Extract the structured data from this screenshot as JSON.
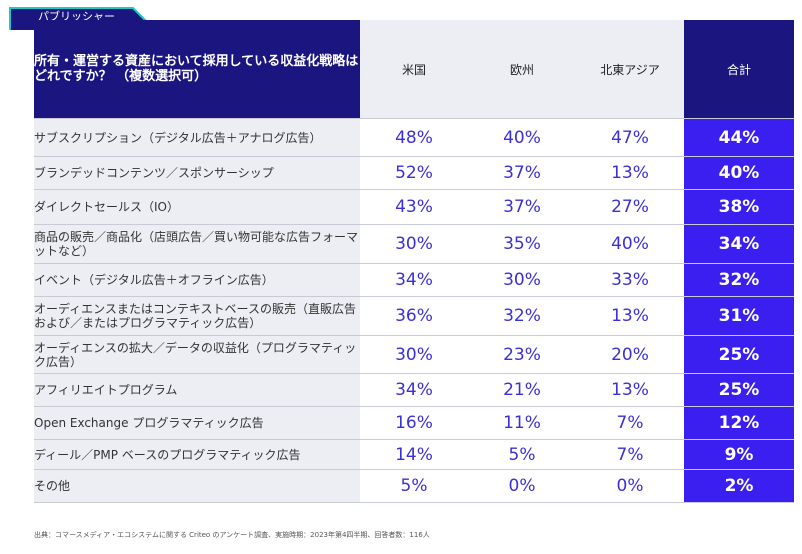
{
  "tag": {
    "label": "パブリッシャー"
  },
  "header": {
    "question": "所有・運営する資産において採用している収益化戦略はどれですか？ （複数選択可）",
    "regions": [
      "米国",
      "欧州",
      "北東アジア",
      "合計"
    ]
  },
  "rows": [
    {
      "label": "サブスクリプション（デジタル広告＋アナログ広告）",
      "values": [
        "48%",
        "40%",
        "47%",
        "44%"
      ]
    },
    {
      "label": "ブランデッドコンテンツ／スポンサーシップ",
      "values": [
        "52%",
        "37%",
        "13%",
        "40%"
      ]
    },
    {
      "label": "ダイレクトセールス（IO）",
      "values": [
        "43%",
        "37%",
        "27%",
        "38%"
      ]
    },
    {
      "label": "商品の販売／商品化（店頭広告／買い物可能な広告フォーマットなど）",
      "values": [
        "30%",
        "35%",
        "40%",
        "34%"
      ]
    },
    {
      "label": "イベント（デジタル広告＋オフライン広告）",
      "values": [
        "34%",
        "30%",
        "33%",
        "32%"
      ]
    },
    {
      "label": "オーディエンスまたはコンテキストベースの販売（直販広告および／またはプログラマティック広告）",
      "values": [
        "36%",
        "32%",
        "13%",
        "31%"
      ]
    },
    {
      "label": "オーディエンスの拡大／データの収益化（プログラマティック広告）",
      "values": [
        "30%",
        "23%",
        "20%",
        "25%"
      ]
    },
    {
      "label": "アフィリエイトプログラム",
      "values": [
        "34%",
        "21%",
        "13%",
        "25%"
      ]
    },
    {
      "label": "Open Exchange プログラマティック広告",
      "values": [
        "16%",
        "11%",
        "7%",
        "12%"
      ]
    },
    {
      "label": "ディール／PMP ベースのプログラマティック広告",
      "values": [
        "14%",
        "5%",
        "7%",
        "9%"
      ]
    },
    {
      "label": "その他",
      "values": [
        "5%",
        "0%",
        "0%",
        "2%"
      ]
    }
  ],
  "source": "出典：コマースメディア・エコシステムに関する Criteo のアンケート調査、実施時期：2023年第4四半期、回答者数：116人",
  "colors": {
    "header_navy": "#1b1580",
    "total_column": "#3a1ff0",
    "value_text": "#3b2fd9",
    "label_background": "#eceef4",
    "tag_outline": "#1ec8c8"
  },
  "chart_data": {
    "type": "table",
    "title": "所有・運営する資産において採用している収益化戦略はどれですか？ （複数選択可）",
    "columns": [
      "米国",
      "欧州",
      "北東アジア",
      "合計"
    ],
    "categories": [
      "サブスクリプション（デジタル広告＋アナログ広告）",
      "ブランデッドコンテンツ／スポンサーシップ",
      "ダイレクトセールス（IO）",
      "商品の販売／商品化（店頭広告／買い物可能な広告フォーマットなど）",
      "イベント（デジタル広告＋オフライン広告）",
      "オーディエンスまたはコンテキストベースの販売（直販広告および／またはプログラマティック広告）",
      "オーディエンスの拡大／データの収益化（プログラマティック広告）",
      "アフィリエイトプログラム",
      "Open Exchange プログラマティック広告",
      "ディール／PMP ベースのプログラマティック広告",
      "その他"
    ],
    "series": [
      {
        "name": "米国",
        "values": [
          48,
          52,
          43,
          30,
          34,
          36,
          30,
          34,
          16,
          14,
          5
        ]
      },
      {
        "name": "欧州",
        "values": [
          40,
          37,
          37,
          35,
          30,
          32,
          23,
          21,
          11,
          5,
          0
        ]
      },
      {
        "name": "北東アジア",
        "values": [
          47,
          13,
          27,
          40,
          33,
          13,
          20,
          13,
          7,
          7,
          0
        ]
      },
      {
        "name": "合計",
        "values": [
          44,
          40,
          38,
          34,
          32,
          31,
          25,
          25,
          12,
          9,
          2
        ]
      }
    ]
  }
}
